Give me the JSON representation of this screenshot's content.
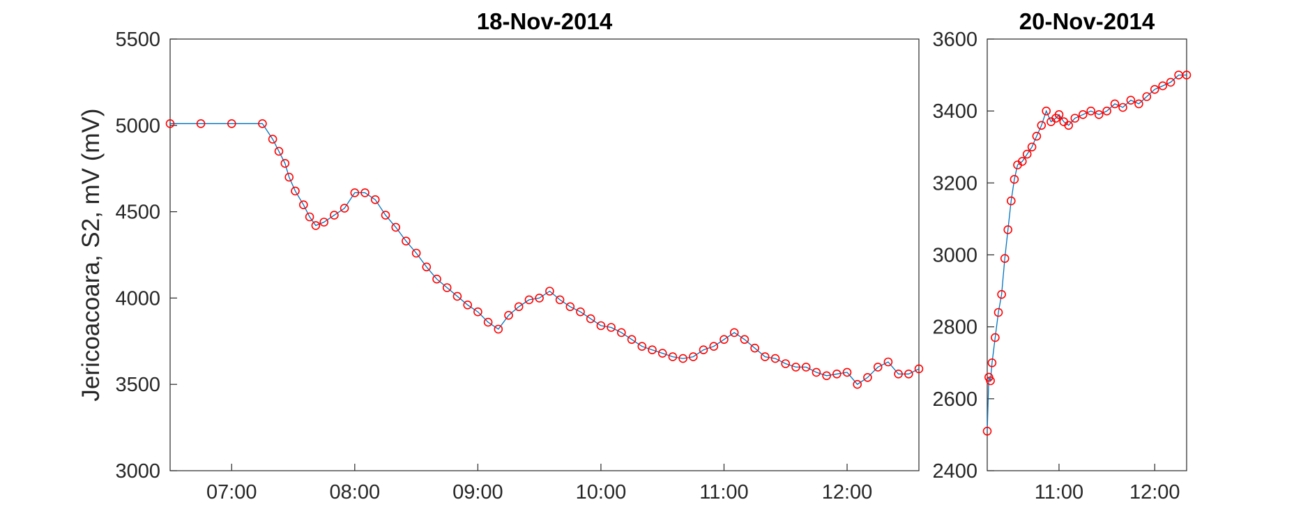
{
  "chart_data": [
    {
      "type": "line",
      "title": "18-Nov-2014",
      "ylabel": "Jericoacoara, S2, mV (mV)",
      "xlabel": "",
      "xlim": [
        "06:30",
        "12:35"
      ],
      "ylim": [
        3000,
        5500
      ],
      "xticks": [
        "07:00",
        "08:00",
        "09:00",
        "10:00",
        "11:00",
        "12:00"
      ],
      "yticks": [
        3000,
        3500,
        4000,
        4500,
        5000,
        5500
      ],
      "grid": false,
      "series": [
        {
          "line_color": "#0072BD",
          "marker": "circle-open",
          "marker_color": "#FF0000",
          "points": [
            [
              "06:30",
              5010
            ],
            [
              "06:45",
              5010
            ],
            [
              "07:00",
              5010
            ],
            [
              "07:15",
              5010
            ],
            [
              "07:20",
              4920
            ],
            [
              "07:23",
              4850
            ],
            [
              "07:26",
              4780
            ],
            [
              "07:28",
              4700
            ],
            [
              "07:31",
              4620
            ],
            [
              "07:35",
              4540
            ],
            [
              "07:38",
              4470
            ],
            [
              "07:41",
              4420
            ],
            [
              "07:45",
              4440
            ],
            [
              "07:50",
              4480
            ],
            [
              "07:55",
              4520
            ],
            [
              "08:00",
              4610
            ],
            [
              "08:05",
              4610
            ],
            [
              "08:10",
              4570
            ],
            [
              "08:15",
              4480
            ],
            [
              "08:20",
              4410
            ],
            [
              "08:25",
              4330
            ],
            [
              "08:30",
              4260
            ],
            [
              "08:35",
              4180
            ],
            [
              "08:40",
              4110
            ],
            [
              "08:45",
              4060
            ],
            [
              "08:50",
              4010
            ],
            [
              "08:55",
              3960
            ],
            [
              "09:00",
              3920
            ],
            [
              "09:05",
              3860
            ],
            [
              "09:10",
              3820
            ],
            [
              "09:15",
              3900
            ],
            [
              "09:20",
              3950
            ],
            [
              "09:25",
              3990
            ],
            [
              "09:30",
              4000
            ],
            [
              "09:35",
              4040
            ],
            [
              "09:40",
              3990
            ],
            [
              "09:45",
              3950
            ],
            [
              "09:50",
              3920
            ],
            [
              "09:55",
              3880
            ],
            [
              "10:00",
              3840
            ],
            [
              "10:05",
              3830
            ],
            [
              "10:10",
              3800
            ],
            [
              "10:15",
              3760
            ],
            [
              "10:20",
              3720
            ],
            [
              "10:25",
              3700
            ],
            [
              "10:30",
              3680
            ],
            [
              "10:35",
              3660
            ],
            [
              "10:40",
              3650
            ],
            [
              "10:45",
              3660
            ],
            [
              "10:50",
              3700
            ],
            [
              "10:55",
              3720
            ],
            [
              "11:00",
              3760
            ],
            [
              "11:05",
              3800
            ],
            [
              "11:10",
              3760
            ],
            [
              "11:15",
              3710
            ],
            [
              "11:20",
              3660
            ],
            [
              "11:25",
              3650
            ],
            [
              "11:30",
              3620
            ],
            [
              "11:35",
              3600
            ],
            [
              "11:40",
              3600
            ],
            [
              "11:45",
              3570
            ],
            [
              "11:50",
              3550
            ],
            [
              "11:55",
              3560
            ],
            [
              "12:00",
              3570
            ],
            [
              "12:05",
              3500
            ],
            [
              "12:10",
              3540
            ],
            [
              "12:15",
              3600
            ],
            [
              "12:20",
              3630
            ],
            [
              "12:25",
              3560
            ],
            [
              "12:30",
              3560
            ],
            [
              "12:35",
              3590
            ]
          ]
        }
      ]
    },
    {
      "type": "line",
      "title": "20-Nov-2014",
      "ylabel": "",
      "xlabel": "",
      "xlim": [
        "10:15",
        "12:20"
      ],
      "ylim": [
        2400,
        3600
      ],
      "xticks": [
        "11:00",
        "12:00"
      ],
      "yticks": [
        2400,
        2600,
        2800,
        3000,
        3200,
        3400,
        3600
      ],
      "grid": false,
      "series": [
        {
          "line_color": "#0072BD",
          "marker": "circle-open",
          "marker_color": "#FF0000",
          "points": [
            [
              "10:15",
              2510
            ],
            [
              "10:16",
              2660
            ],
            [
              "10:17",
              2650
            ],
            [
              "10:18",
              2700
            ],
            [
              "10:20",
              2770
            ],
            [
              "10:22",
              2840
            ],
            [
              "10:24",
              2890
            ],
            [
              "10:26",
              2990
            ],
            [
              "10:28",
              3070
            ],
            [
              "10:30",
              3150
            ],
            [
              "10:32",
              3210
            ],
            [
              "10:34",
              3250
            ],
            [
              "10:37",
              3260
            ],
            [
              "10:40",
              3280
            ],
            [
              "10:43",
              3300
            ],
            [
              "10:46",
              3330
            ],
            [
              "10:49",
              3360
            ],
            [
              "10:52",
              3400
            ],
            [
              "10:55",
              3370
            ],
            [
              "10:58",
              3380
            ],
            [
              "11:00",
              3390
            ],
            [
              "11:03",
              3370
            ],
            [
              "11:06",
              3360
            ],
            [
              "11:10",
              3380
            ],
            [
              "11:15",
              3390
            ],
            [
              "11:20",
              3400
            ],
            [
              "11:25",
              3390
            ],
            [
              "11:30",
              3400
            ],
            [
              "11:35",
              3420
            ],
            [
              "11:40",
              3410
            ],
            [
              "11:45",
              3430
            ],
            [
              "11:50",
              3420
            ],
            [
              "11:55",
              3440
            ],
            [
              "12:00",
              3460
            ],
            [
              "12:05",
              3470
            ],
            [
              "12:10",
              3480
            ],
            [
              "12:15",
              3500
            ],
            [
              "12:20",
              3500
            ]
          ]
        }
      ]
    }
  ]
}
